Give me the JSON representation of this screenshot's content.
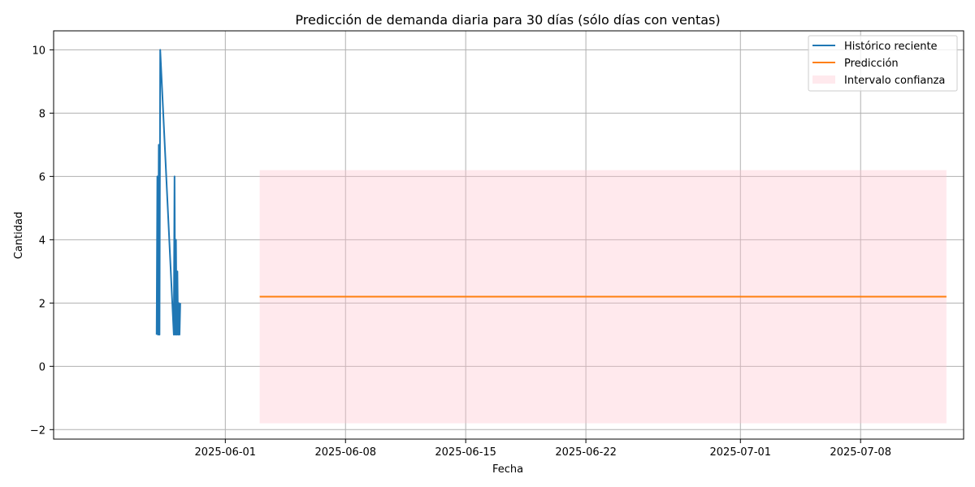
{
  "chart_data": {
    "type": "line",
    "title": "Predicción de demanda diaria para 30 días (sólo días con ventas)",
    "xlabel": "Fecha",
    "ylabel": "Cantidad",
    "xlim": [
      "2025-05-22",
      "2025-07-14"
    ],
    "ylim": [
      -2.3,
      10.6
    ],
    "x_ticks": [
      "2025-06-01",
      "2025-06-08",
      "2025-06-15",
      "2025-06-22",
      "2025-07-01",
      "2025-07-08"
    ],
    "y_ticks": [
      -2,
      0,
      2,
      4,
      6,
      8,
      10
    ],
    "grid": true,
    "legend_position": "top-right",
    "colors": {
      "historico": "#1f77b4",
      "prediccion": "#ff7f0e",
      "intervalo": "#ffc0cb"
    },
    "series": [
      {
        "name": "Histórico reciente",
        "kind": "line",
        "points": [
          {
            "x": "2025-05-28 00:00",
            "y": 1
          },
          {
            "x": "2025-05-28 01:00",
            "y": 6
          },
          {
            "x": "2025-05-28 02:00",
            "y": 1
          },
          {
            "x": "2025-05-28 03:00",
            "y": 7
          },
          {
            "x": "2025-05-28 04:00",
            "y": 1
          },
          {
            "x": "2025-05-28 05:00",
            "y": 10
          },
          {
            "x": "2025-05-29 00:00",
            "y": 1
          },
          {
            "x": "2025-05-29 01:00",
            "y": 6
          },
          {
            "x": "2025-05-29 02:00",
            "y": 1
          },
          {
            "x": "2025-05-29 03:00",
            "y": 4
          },
          {
            "x": "2025-05-29 04:00",
            "y": 1
          },
          {
            "x": "2025-05-29 05:00",
            "y": 3
          },
          {
            "x": "2025-05-29 06:00",
            "y": 1
          },
          {
            "x": "2025-05-29 07:00",
            "y": 2
          },
          {
            "x": "2025-05-29 08:00",
            "y": 1
          },
          {
            "x": "2025-05-29 09:00",
            "y": 2
          }
        ]
      },
      {
        "name": "Predicción",
        "kind": "line",
        "points": [
          {
            "x": "2025-06-03",
            "y": 2.2
          },
          {
            "x": "2025-07-13",
            "y": 2.2
          }
        ]
      },
      {
        "name": "Intervalo confianza",
        "kind": "band",
        "x_start": "2025-06-03",
        "x_end": "2025-07-13",
        "lower": -1.8,
        "upper": 6.2
      }
    ]
  }
}
